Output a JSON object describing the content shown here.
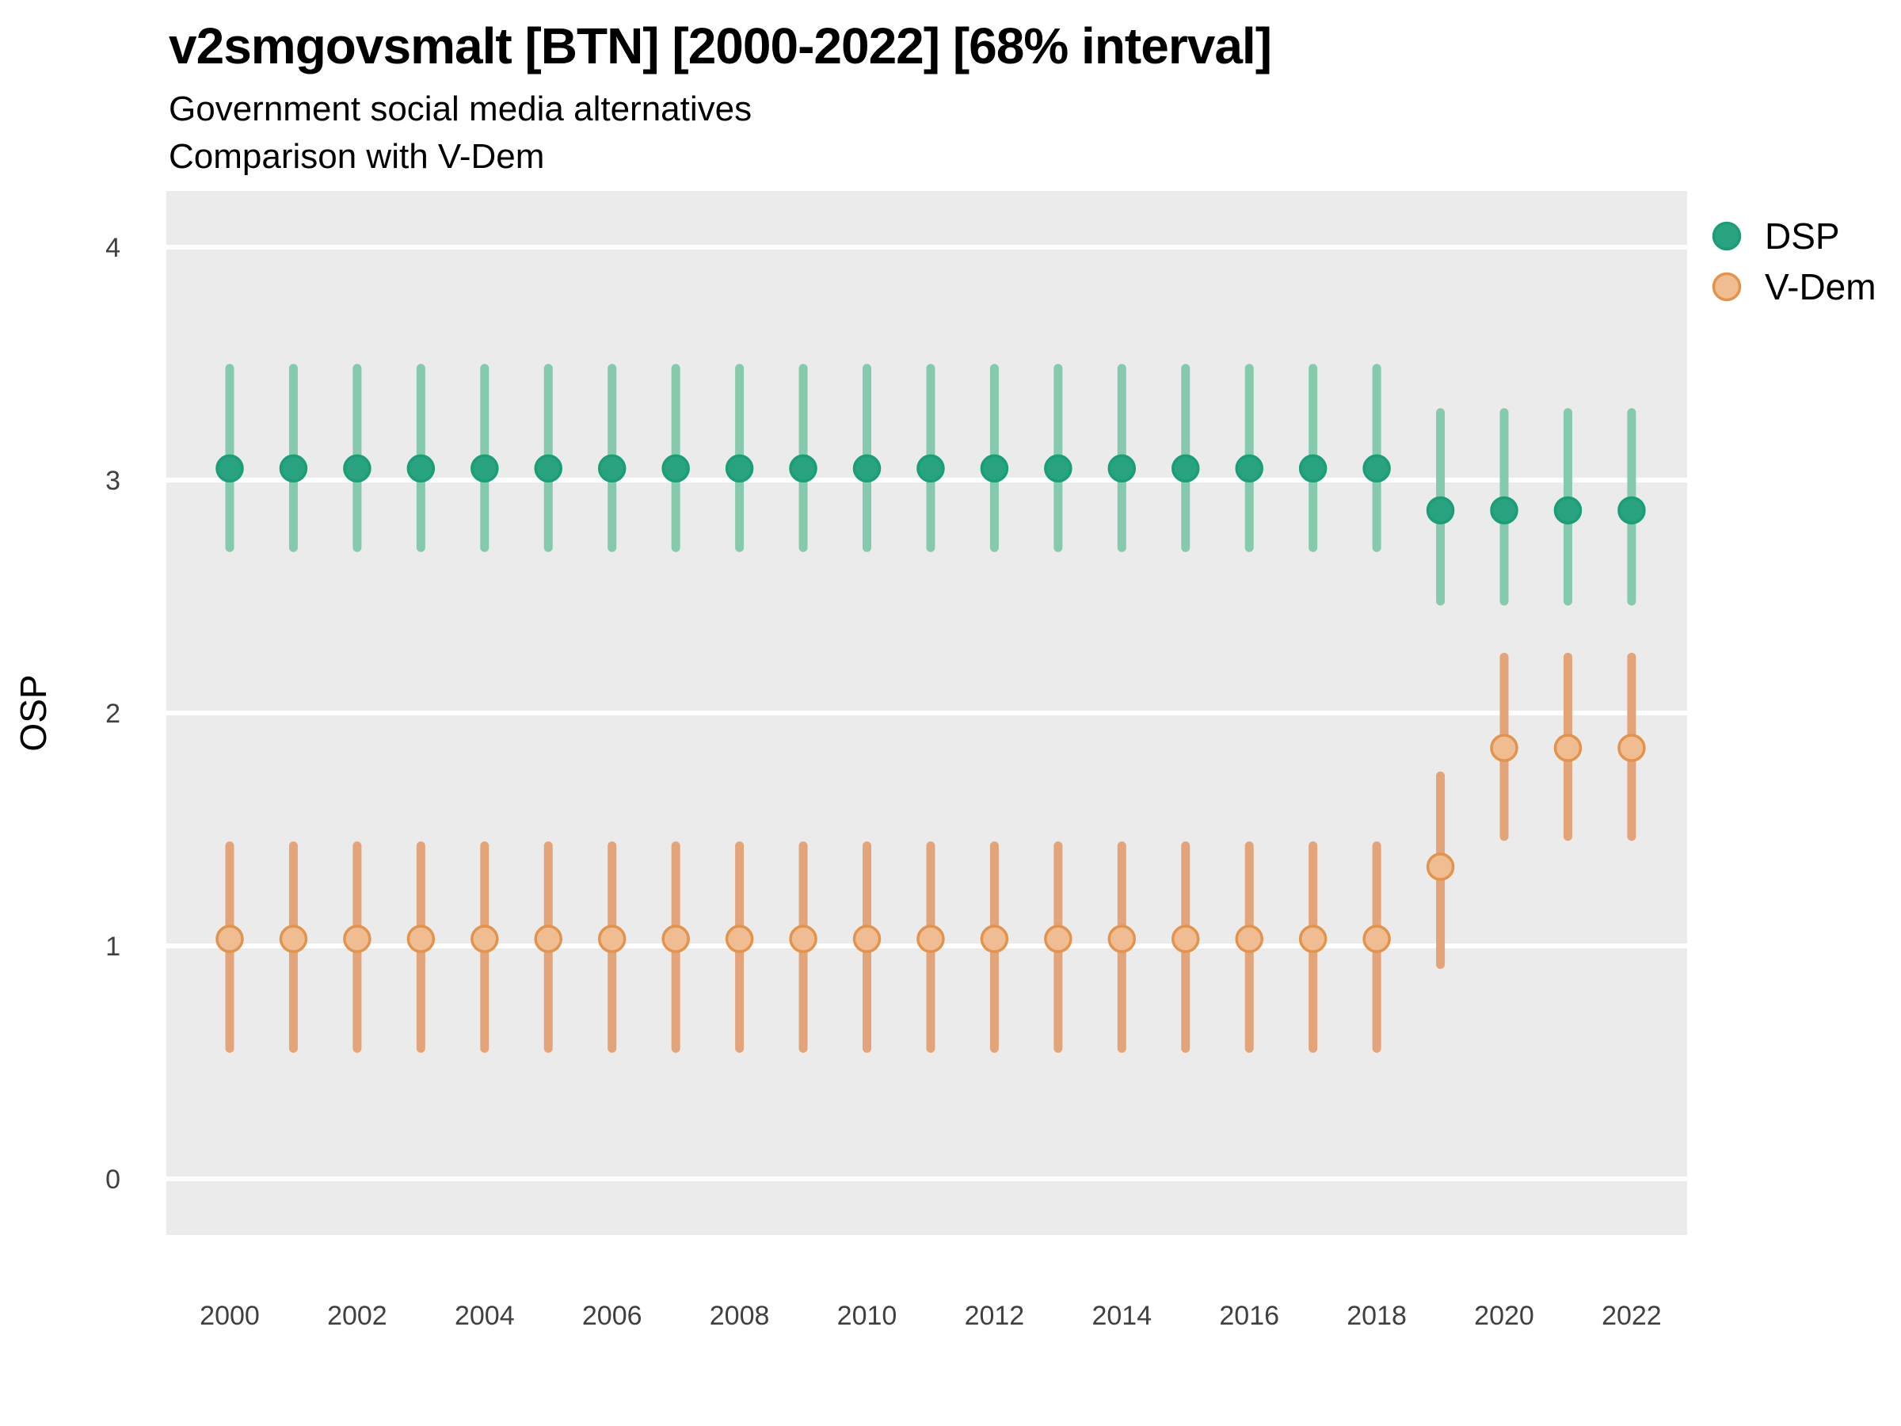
{
  "header": {
    "title": "v2smgovsmalt [BTN] [2000-2022] [68% interval]",
    "subtitle1": "Government social media alternatives",
    "subtitle2": "Comparison with V-Dem"
  },
  "chart_data": {
    "type": "pointrange",
    "title": "v2smgovsmalt [BTN] [2000-2022] [68% interval]",
    "subtitle": [
      "Government social media alternatives",
      "Comparison with V-Dem"
    ],
    "xlabel": "",
    "ylabel": "OSP",
    "interval": "68%",
    "grid": "horizontal-major-only",
    "legend_position": "right-top",
    "xlim": [
      1999,
      2023
    ],
    "ylim": [
      -0.24,
      4.24
    ],
    "x_ticks": [
      2000,
      2002,
      2004,
      2006,
      2008,
      2010,
      2012,
      2014,
      2016,
      2018,
      2020,
      2022
    ],
    "y_ticks": [
      0,
      1,
      2,
      3,
      4
    ],
    "x": [
      2000,
      2001,
      2002,
      2003,
      2004,
      2005,
      2006,
      2007,
      2008,
      2009,
      2010,
      2011,
      2012,
      2013,
      2014,
      2015,
      2016,
      2017,
      2018,
      2019,
      2020,
      2021,
      2022
    ],
    "series": [
      {
        "name": "DSP",
        "point_fill": "#29a37f",
        "point_stroke": "#1b9e77",
        "bar_color": "#85caac",
        "values": [
          3.05,
          3.05,
          3.05,
          3.05,
          3.05,
          3.05,
          3.05,
          3.05,
          3.05,
          3.05,
          3.05,
          3.05,
          3.05,
          3.05,
          3.05,
          3.05,
          3.05,
          3.05,
          3.05,
          2.87,
          2.87,
          2.87,
          2.87
        ],
        "lower": [
          2.71,
          2.71,
          2.71,
          2.71,
          2.71,
          2.71,
          2.71,
          2.71,
          2.71,
          2.71,
          2.71,
          2.71,
          2.71,
          2.71,
          2.71,
          2.71,
          2.71,
          2.71,
          2.71,
          2.48,
          2.48,
          2.48,
          2.48
        ],
        "upper": [
          3.48,
          3.48,
          3.48,
          3.48,
          3.48,
          3.48,
          3.48,
          3.48,
          3.48,
          3.48,
          3.48,
          3.48,
          3.48,
          3.48,
          3.48,
          3.48,
          3.48,
          3.48,
          3.48,
          3.29,
          3.29,
          3.29,
          3.29
        ]
      },
      {
        "name": "V-Dem",
        "point_fill": "#f0bc92",
        "point_stroke": "#e2944e",
        "bar_color": "#e2a478",
        "values": [
          1.03,
          1.03,
          1.03,
          1.03,
          1.03,
          1.03,
          1.03,
          1.03,
          1.03,
          1.03,
          1.03,
          1.03,
          1.03,
          1.03,
          1.03,
          1.03,
          1.03,
          1.03,
          1.03,
          1.34,
          1.85,
          1.85,
          1.85
        ],
        "lower": [
          0.56,
          0.56,
          0.56,
          0.56,
          0.56,
          0.56,
          0.56,
          0.56,
          0.56,
          0.56,
          0.56,
          0.56,
          0.56,
          0.56,
          0.56,
          0.56,
          0.56,
          0.56,
          0.56,
          0.92,
          1.47,
          1.47,
          1.47
        ],
        "upper": [
          1.43,
          1.43,
          1.43,
          1.43,
          1.43,
          1.43,
          1.43,
          1.43,
          1.43,
          1.43,
          1.43,
          1.43,
          1.43,
          1.43,
          1.43,
          1.43,
          1.43,
          1.43,
          1.43,
          1.73,
          2.24,
          2.24,
          2.24
        ]
      }
    ],
    "style": {
      "panel_bg": "#ebebeb",
      "grid_color": "#ffffff",
      "axis_text_color": "#404040",
      "text_color": "#000000"
    }
  }
}
